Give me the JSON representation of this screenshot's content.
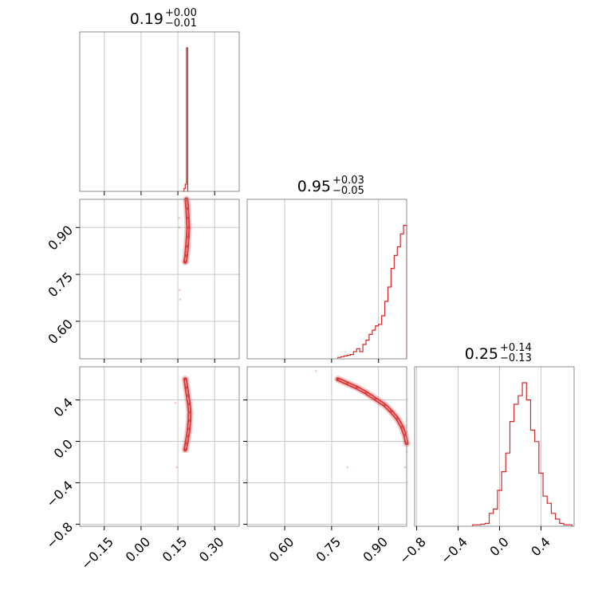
{
  "chart_data": {
    "type": "corner",
    "color": "#d62728",
    "grid": true,
    "parameters": [
      {
        "title": {
          "median": "0.19",
          "plus": "+0.00",
          "minus": "−0.01"
        },
        "range": [
          -0.25,
          0.4
        ],
        "ticks": [
          -0.15,
          0.0,
          0.15,
          0.3
        ],
        "tick_labels": [
          "−0.15",
          "0.00",
          "0.15",
          "0.30"
        ],
        "hist": {
          "edges": [
            0.17,
            0.175,
            0.18,
            0.185,
            0.19,
            0.195
          ],
          "counts": [
            0.0,
            0.02,
            0.05,
            1.0,
            0.0
          ]
        }
      },
      {
        "title": {
          "median": "0.95",
          "plus": "+0.03",
          "minus": "−0.05"
        },
        "range": [
          0.48,
          0.99
        ],
        "ticks": [
          0.6,
          0.75,
          0.9
        ],
        "tick_labels": [
          "0.60",
          "0.75",
          "0.90"
        ],
        "hist": {
          "edges": [
            0.77,
            0.78,
            0.79,
            0.8,
            0.81,
            0.82,
            0.83,
            0.84,
            0.85,
            0.86,
            0.87,
            0.88,
            0.89,
            0.9,
            0.91,
            0.92,
            0.93,
            0.94,
            0.95,
            0.96,
            0.97,
            0.98,
            0.99
          ],
          "counts": [
            0.01,
            0.015,
            0.02,
            0.025,
            0.03,
            0.05,
            0.07,
            0.05,
            0.1,
            0.13,
            0.17,
            0.2,
            0.23,
            0.24,
            0.3,
            0.4,
            0.5,
            0.63,
            0.72,
            0.78,
            0.87,
            0.93
          ]
        }
      },
      {
        "title": {
          "median": "0.25",
          "plus": "+0.14",
          "minus": "−0.13"
        },
        "range": [
          -0.82,
          0.72
        ],
        "ticks": [
          -0.8,
          -0.4,
          0.0,
          0.4
        ],
        "tick_labels": [
          "−0.8",
          "−0.4",
          "0.0",
          "0.4"
        ],
        "hist": {
          "edges": [
            -0.26,
            -0.22,
            -0.18,
            -0.14,
            -0.1,
            -0.06,
            -0.02,
            0.02,
            0.06,
            0.1,
            0.14,
            0.18,
            0.22,
            0.26,
            0.3,
            0.34,
            0.38,
            0.42,
            0.46,
            0.5,
            0.54,
            0.58,
            0.62,
            0.66,
            0.7
          ],
          "counts": [
            0.01,
            0.01,
            0.015,
            0.02,
            0.09,
            0.12,
            0.25,
            0.38,
            0.51,
            0.73,
            0.85,
            0.91,
            1.0,
            0.88,
            0.67,
            0.59,
            0.37,
            0.21,
            0.16,
            0.09,
            0.05,
            0.02,
            0.01,
            0.01
          ]
        }
      }
    ],
    "scatter": [
      {
        "x_param": 0,
        "y_param": 1,
        "core": [
          [
            0.185,
            0.99
          ],
          [
            0.188,
            0.96
          ],
          [
            0.19,
            0.93
          ],
          [
            0.192,
            0.9
          ],
          [
            0.19,
            0.87
          ],
          [
            0.187,
            0.84
          ],
          [
            0.184,
            0.81
          ],
          [
            0.18,
            0.79
          ]
        ],
        "outliers": [
          [
            0.155,
            0.93
          ],
          [
            0.155,
            0.9
          ],
          [
            0.157,
            0.7
          ],
          [
            0.16,
            0.67
          ]
        ]
      },
      {
        "x_param": 0,
        "y_param": 2,
        "core": [
          [
            0.18,
            0.6
          ],
          [
            0.185,
            0.52
          ],
          [
            0.19,
            0.44
          ],
          [
            0.195,
            0.36
          ],
          [
            0.198,
            0.28
          ],
          [
            0.197,
            0.2
          ],
          [
            0.194,
            0.12
          ],
          [
            0.19,
            0.05
          ],
          [
            0.185,
            -0.02
          ],
          [
            0.18,
            -0.08
          ]
        ],
        "outliers": [
          [
            0.14,
            0.37
          ],
          [
            0.145,
            -0.25
          ]
        ]
      },
      {
        "x_param": 1,
        "y_param": 2,
        "core": [
          [
            0.77,
            0.6
          ],
          [
            0.8,
            0.56
          ],
          [
            0.83,
            0.52
          ],
          [
            0.86,
            0.47
          ],
          [
            0.89,
            0.41
          ],
          [
            0.92,
            0.35
          ],
          [
            0.94,
            0.29
          ],
          [
            0.96,
            0.22
          ],
          [
            0.975,
            0.14
          ],
          [
            0.985,
            0.06
          ],
          [
            0.99,
            -0.02
          ]
        ],
        "outliers": [
          [
            0.7,
            0.68
          ],
          [
            0.8,
            -0.25
          ],
          [
            0.985,
            -0.25
          ],
          [
            0.99,
            -0.1
          ]
        ]
      }
    ]
  }
}
